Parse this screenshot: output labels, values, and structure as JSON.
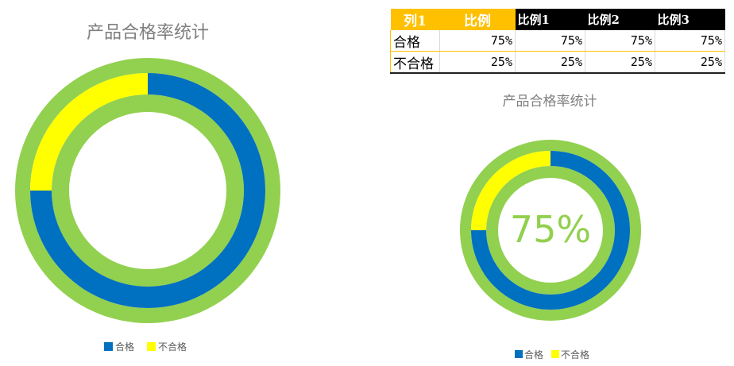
{
  "chart_data": [
    {
      "type": "donut",
      "title": "产品合格率统计",
      "categories": [
        "合格",
        "不合格"
      ],
      "values": [
        75,
        25
      ],
      "outer_ring_value": 100,
      "colors": {
        "合格": "#0070c0",
        "不合格": "#ffff00",
        "ring": "#92d050"
      },
      "legend_position": "bottom"
    },
    {
      "type": "donut",
      "title": "产品合格率统计",
      "center_label": "75%",
      "categories": [
        "合格",
        "不合格"
      ],
      "values": [
        75,
        25
      ],
      "outer_ring_value": 100,
      "colors": {
        "合格": "#0070c0",
        "不合格": "#ffff00",
        "ring": "#92d050"
      },
      "legend_position": "bottom"
    }
  ],
  "table": {
    "headers": [
      "列1",
      "比例",
      "比例1",
      "比例2",
      "比例3"
    ],
    "rows": [
      [
        "合格",
        "75%",
        "75%",
        "75%",
        "75%"
      ],
      [
        "不合格",
        "25%",
        "25%",
        "25%",
        "25%"
      ]
    ]
  },
  "legend": {
    "pass_label": "合格",
    "fail_label": "不合格"
  }
}
